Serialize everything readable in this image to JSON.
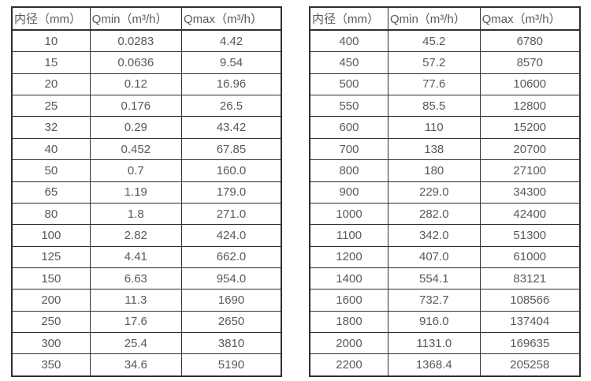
{
  "page": {
    "background_color": "#ffffff",
    "text_color": "#595959",
    "border_color": "#2f2f2f",
    "description": "Two side-by-side specification tables of pipe inner diameter vs min/max flow rate"
  },
  "tables": [
    {
      "name": "flow-rate-table-small-diameters",
      "headers": [
        "内径（mm）",
        "Qmin（m³/h）",
        "Qmax（m³/h）"
      ],
      "rows": [
        [
          "10",
          "0.0283",
          "4.42"
        ],
        [
          "15",
          "0.0636",
          "9.54"
        ],
        [
          "20",
          "0.12",
          "16.96"
        ],
        [
          "25",
          "0.176",
          "26.5"
        ],
        [
          "32",
          "0.29",
          "43.42"
        ],
        [
          "40",
          "0.452",
          "67.85"
        ],
        [
          "50",
          "0.7",
          "160.0"
        ],
        [
          "65",
          "1.19",
          "179.0"
        ],
        [
          "80",
          "1.8",
          "271.0"
        ],
        [
          "100",
          "2.82",
          "424.0"
        ],
        [
          "125",
          "4.41",
          "662.0"
        ],
        [
          "150",
          "6.63",
          "954.0"
        ],
        [
          "200",
          "11.3",
          "1690"
        ],
        [
          "250",
          "17.6",
          "2650"
        ],
        [
          "300",
          "25.4",
          "3810"
        ],
        [
          "350",
          "34.6",
          "5190"
        ]
      ]
    },
    {
      "name": "flow-rate-table-large-diameters",
      "headers": [
        "内径（mm）",
        "Qmin（m³/h）",
        "Qmax（m³/h）"
      ],
      "rows": [
        [
          "400",
          "45.2",
          "6780"
        ],
        [
          "450",
          "57.2",
          "8570"
        ],
        [
          "500",
          "77.6",
          "10600"
        ],
        [
          "550",
          "85.5",
          "12800"
        ],
        [
          "600",
          "110",
          "15200"
        ],
        [
          "700",
          "138",
          "20700"
        ],
        [
          "800",
          "180",
          "27100"
        ],
        [
          "900",
          "229.0",
          "34300"
        ],
        [
          "1000",
          "282.0",
          "42400"
        ],
        [
          "1100",
          "342.0",
          "51300"
        ],
        [
          "1200",
          "407.0",
          "61000"
        ],
        [
          "1400",
          "554.1",
          "83121"
        ],
        [
          "1600",
          "732.7",
          "108566"
        ],
        [
          "1800",
          "916.0",
          "137404"
        ],
        [
          "2000",
          "1131.0",
          "169635"
        ],
        [
          "2200",
          "1368.4",
          "205258"
        ]
      ]
    }
  ]
}
